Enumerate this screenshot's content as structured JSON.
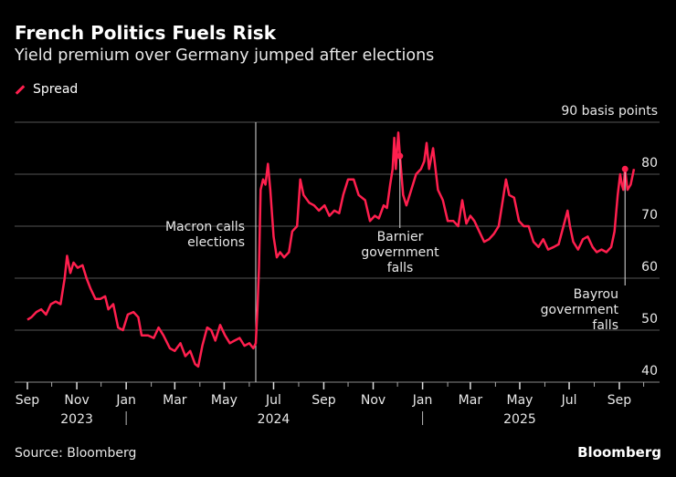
{
  "header": {
    "title": "French Politics Fuels Risk",
    "subtitle": "Yield premium over Germany jumped after elections"
  },
  "footer": {
    "source": "Source: Bloomberg",
    "brand": "Bloomberg"
  },
  "colors": {
    "background": "#000000",
    "series": "#ff1f4e",
    "grid": "#555555",
    "text": "#e8e8e8"
  },
  "chart_data": {
    "type": "line",
    "title": "French Politics Fuels Risk",
    "subtitle": "Yield premium over Germany jumped after elections",
    "ylabel": "90 basis points",
    "ylim": [
      40,
      90
    ],
    "yticks": [
      40,
      50,
      60,
      70,
      80,
      90
    ],
    "ytick_labels": [
      "40",
      "50",
      "60",
      "70",
      "80",
      "90 basis points"
    ],
    "xlim": [
      "2023-08-28",
      "2025-09-22"
    ],
    "xticks": [
      {
        "date": "2023-09-01",
        "label": "Sep"
      },
      {
        "date": "2023-11-01",
        "label": "Nov"
      },
      {
        "date": "2024-01-01",
        "label": "Jan"
      },
      {
        "date": "2024-03-01",
        "label": "Mar"
      },
      {
        "date": "2024-05-01",
        "label": "May"
      },
      {
        "date": "2024-07-01",
        "label": "Jul"
      },
      {
        "date": "2024-09-01",
        "label": "Sep"
      },
      {
        "date": "2024-11-01",
        "label": "Nov"
      },
      {
        "date": "2025-01-01",
        "label": "Jan"
      },
      {
        "date": "2025-03-01",
        "label": "Mar"
      },
      {
        "date": "2025-05-01",
        "label": "May"
      },
      {
        "date": "2025-07-01",
        "label": "Jul"
      },
      {
        "date": "2025-09-01",
        "label": "Sep"
      }
    ],
    "year_labels": [
      {
        "date": "2023-11-01",
        "label": "2023"
      },
      {
        "date": "2024-07-01",
        "label": "2024"
      },
      {
        "date": "2025-05-01",
        "label": "2025"
      }
    ],
    "grid": true,
    "legend": "top-left",
    "series": [
      {
        "name": "Spread",
        "color": "#ff1f4e",
        "points": [
          [
            "2023-09-01",
            52
          ],
          [
            "2023-09-06",
            52.5
          ],
          [
            "2023-09-12",
            53.5
          ],
          [
            "2023-09-18",
            54
          ],
          [
            "2023-09-24",
            53
          ],
          [
            "2023-09-30",
            55
          ],
          [
            "2023-10-06",
            55.5
          ],
          [
            "2023-10-12",
            55
          ],
          [
            "2023-10-17",
            60
          ],
          [
            "2023-10-20",
            64.3
          ],
          [
            "2023-10-24",
            61
          ],
          [
            "2023-10-28",
            63
          ],
          [
            "2023-11-02",
            62
          ],
          [
            "2023-11-08",
            62.5
          ],
          [
            "2023-11-13",
            60
          ],
          [
            "2023-11-18",
            58
          ],
          [
            "2023-11-24",
            56
          ],
          [
            "2023-11-30",
            56
          ],
          [
            "2023-12-06",
            56.5
          ],
          [
            "2023-12-10",
            54
          ],
          [
            "2023-12-16",
            55
          ],
          [
            "2023-12-22",
            50.5
          ],
          [
            "2023-12-28",
            50
          ],
          [
            "2024-01-03",
            53
          ],
          [
            "2024-01-10",
            53.5
          ],
          [
            "2024-01-16",
            52.5
          ],
          [
            "2024-01-20",
            49
          ],
          [
            "2024-01-28",
            49
          ],
          [
            "2024-02-04",
            48.5
          ],
          [
            "2024-02-10",
            50.5
          ],
          [
            "2024-02-16",
            49
          ],
          [
            "2024-02-24",
            46.5
          ],
          [
            "2024-03-01",
            46
          ],
          [
            "2024-03-08",
            47.5
          ],
          [
            "2024-03-14",
            45
          ],
          [
            "2024-03-20",
            46
          ],
          [
            "2024-03-26",
            43.5
          ],
          [
            "2024-03-30",
            43
          ],
          [
            "2024-04-04",
            47
          ],
          [
            "2024-04-10",
            50.5
          ],
          [
            "2024-04-15",
            50
          ],
          [
            "2024-04-20",
            48
          ],
          [
            "2024-04-26",
            51
          ],
          [
            "2024-05-02",
            49
          ],
          [
            "2024-05-08",
            47.5
          ],
          [
            "2024-05-14",
            48
          ],
          [
            "2024-05-20",
            48.5
          ],
          [
            "2024-05-26",
            47
          ],
          [
            "2024-06-01",
            47.5
          ],
          [
            "2024-06-06",
            46.5
          ],
          [
            "2024-06-09",
            47.5
          ],
          [
            "2024-06-11",
            54
          ],
          [
            "2024-06-13",
            62
          ],
          [
            "2024-06-15",
            77
          ],
          [
            "2024-06-18",
            79
          ],
          [
            "2024-06-21",
            78
          ],
          [
            "2024-06-24",
            82
          ],
          [
            "2024-06-27",
            77
          ],
          [
            "2024-07-01",
            68
          ],
          [
            "2024-07-05",
            64
          ],
          [
            "2024-07-09",
            65
          ],
          [
            "2024-07-14",
            64
          ],
          [
            "2024-07-20",
            65
          ],
          [
            "2024-07-24",
            69
          ],
          [
            "2024-07-30",
            70
          ],
          [
            "2024-08-03",
            79
          ],
          [
            "2024-08-07",
            76
          ],
          [
            "2024-08-14",
            74.5
          ],
          [
            "2024-08-20",
            74
          ],
          [
            "2024-08-26",
            73
          ],
          [
            "2024-09-02",
            74
          ],
          [
            "2024-09-08",
            72
          ],
          [
            "2024-09-14",
            73
          ],
          [
            "2024-09-20",
            72.5
          ],
          [
            "2024-09-25",
            76
          ],
          [
            "2024-10-01",
            79
          ],
          [
            "2024-10-08",
            79
          ],
          [
            "2024-10-14",
            76
          ],
          [
            "2024-10-22",
            75
          ],
          [
            "2024-10-28",
            71
          ],
          [
            "2024-11-03",
            72
          ],
          [
            "2024-11-08",
            71.5
          ],
          [
            "2024-11-14",
            74
          ],
          [
            "2024-11-18",
            73.5
          ],
          [
            "2024-11-22",
            78
          ],
          [
            "2024-11-25",
            81
          ],
          [
            "2024-11-27",
            87
          ],
          [
            "2024-11-29",
            81
          ],
          [
            "2024-12-02",
            88
          ],
          [
            "2024-12-04",
            83.5
          ],
          [
            "2024-12-08",
            76
          ],
          [
            "2024-12-12",
            74
          ],
          [
            "2024-12-18",
            77
          ],
          [
            "2024-12-24",
            80
          ],
          [
            "2024-12-30",
            81
          ],
          [
            "2025-01-03",
            82.5
          ],
          [
            "2025-01-06",
            86
          ],
          [
            "2025-01-09",
            81
          ],
          [
            "2025-01-14",
            85
          ],
          [
            "2025-01-20",
            77
          ],
          [
            "2025-01-26",
            75
          ],
          [
            "2025-02-01",
            71
          ],
          [
            "2025-02-08",
            71
          ],
          [
            "2025-02-14",
            70
          ],
          [
            "2025-02-19",
            75
          ],
          [
            "2025-02-24",
            70.5
          ],
          [
            "2025-03-01",
            72
          ],
          [
            "2025-03-06",
            71
          ],
          [
            "2025-03-12",
            69
          ],
          [
            "2025-03-18",
            67
          ],
          [
            "2025-03-24",
            67.5
          ],
          [
            "2025-03-30",
            68.5
          ],
          [
            "2025-04-05",
            70
          ],
          [
            "2025-04-10",
            75
          ],
          [
            "2025-04-14",
            79
          ],
          [
            "2025-04-18",
            76
          ],
          [
            "2025-04-24",
            75.5
          ],
          [
            "2025-04-30",
            71
          ],
          [
            "2025-05-06",
            70
          ],
          [
            "2025-05-12",
            70
          ],
          [
            "2025-05-18",
            67
          ],
          [
            "2025-05-24",
            66
          ],
          [
            "2025-05-30",
            67.5
          ],
          [
            "2025-06-05",
            65.5
          ],
          [
            "2025-06-12",
            66
          ],
          [
            "2025-06-18",
            66.5
          ],
          [
            "2025-06-24",
            70
          ],
          [
            "2025-06-29",
            73
          ],
          [
            "2025-07-02",
            70
          ],
          [
            "2025-07-06",
            67
          ],
          [
            "2025-07-12",
            65.5
          ],
          [
            "2025-07-18",
            67.5
          ],
          [
            "2025-07-24",
            68
          ],
          [
            "2025-07-30",
            66
          ],
          [
            "2025-08-04",
            65
          ],
          [
            "2025-08-10",
            65.5
          ],
          [
            "2025-08-16",
            65
          ],
          [
            "2025-08-22",
            66
          ],
          [
            "2025-08-26",
            69
          ],
          [
            "2025-08-30",
            76
          ],
          [
            "2025-09-02",
            80
          ],
          [
            "2025-09-04",
            78
          ],
          [
            "2025-09-06",
            77
          ],
          [
            "2025-09-08",
            81
          ],
          [
            "2025-09-11",
            77
          ],
          [
            "2025-09-15",
            78
          ],
          [
            "2025-09-19",
            81
          ]
        ]
      }
    ],
    "annotations": [
      {
        "date": "2024-06-09",
        "label": [
          "Macron calls",
          "elections"
        ]
      },
      {
        "date": "2024-12-04",
        "value": 83.5,
        "label": [
          "Barnier",
          "government",
          "falls"
        ]
      },
      {
        "date": "2025-09-08",
        "value": 81,
        "label": [
          "Bayrou",
          "government",
          "falls"
        ]
      }
    ]
  }
}
